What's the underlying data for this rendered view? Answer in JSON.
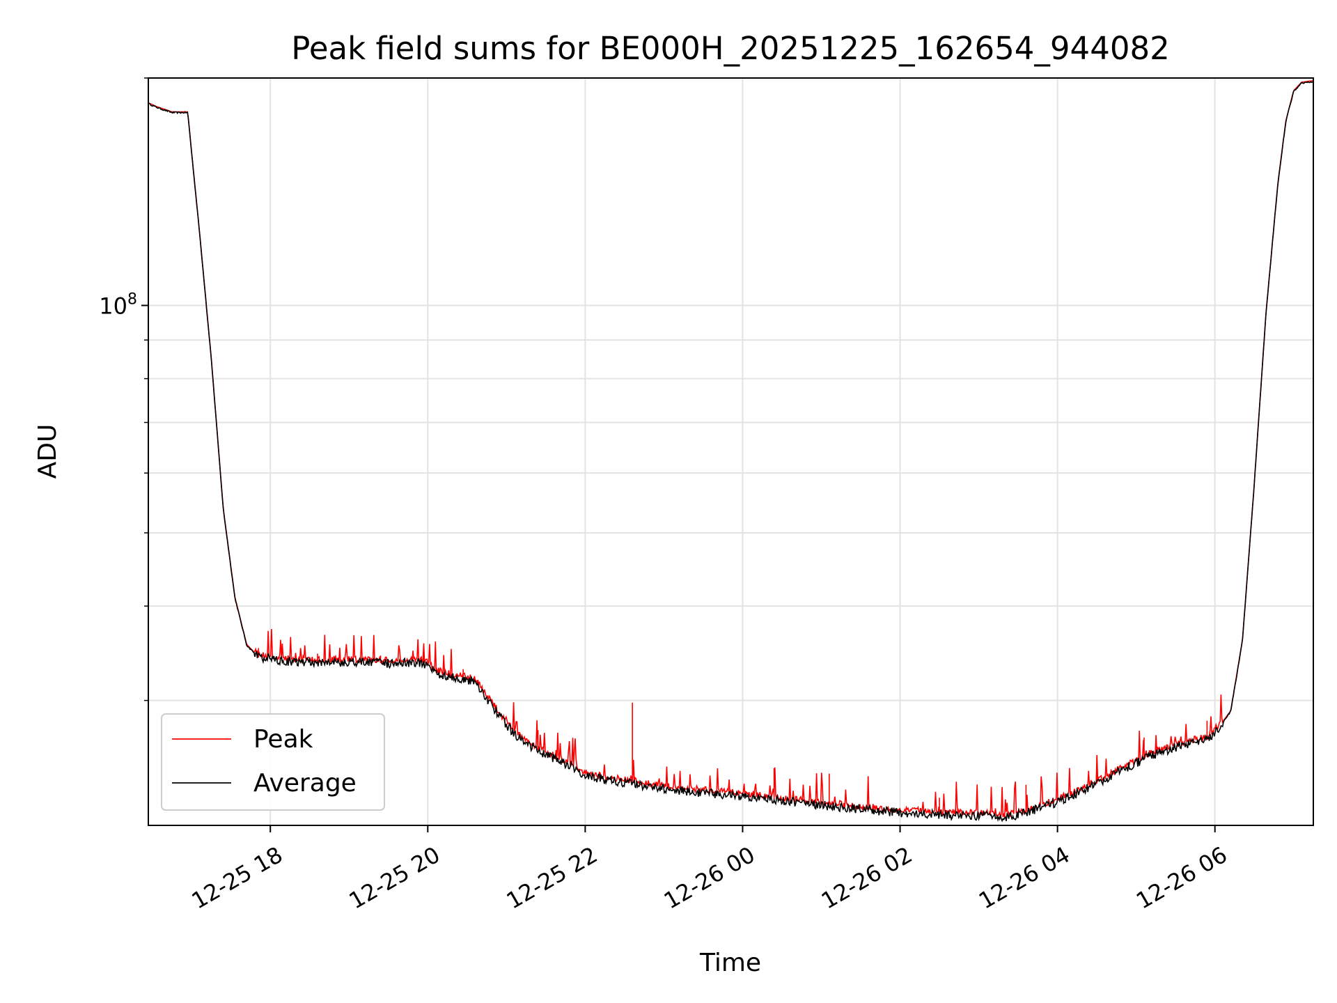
{
  "chart_data": {
    "type": "line",
    "title": "Peak field sums for BE000H_20251225_162654_944082",
    "xlabel": "Time",
    "ylabel": "ADU",
    "x_unit": "hours since 12-25 00:00",
    "xlim": [
      16.45,
      31.25
    ],
    "ylim": [
      20500000,
      200000000
    ],
    "yscale": "log",
    "grid": true,
    "x_ticks": [
      {
        "value": 18,
        "label": "12-25 18"
      },
      {
        "value": 20,
        "label": "12-25 20"
      },
      {
        "value": 22,
        "label": "12-25 22"
      },
      {
        "value": 24,
        "label": "12-26 00"
      },
      {
        "value": 26,
        "label": "12-26 02"
      },
      {
        "value": 28,
        "label": "12-26 04"
      },
      {
        "value": 30,
        "label": "12-26 06"
      }
    ],
    "y_major_ticks": [
      {
        "value": 100000000,
        "base": "10",
        "exponent": "8"
      }
    ],
    "y_minor_ticks": [
      30000000,
      40000000,
      50000000,
      60000000,
      70000000,
      80000000,
      90000000,
      200000000
    ],
    "legend": {
      "location": "lower-left",
      "entries": [
        {
          "label": "Peak",
          "color": "#ff0000"
        },
        {
          "label": "Average",
          "color": "#000000"
        }
      ]
    },
    "series": [
      {
        "name": "Average",
        "color": "#000000",
        "x": [
          16.45,
          16.55,
          16.75,
          16.95,
          17.1,
          17.25,
          17.4,
          17.55,
          17.7,
          17.85,
          18.2,
          18.6,
          19.0,
          19.5,
          19.9,
          20.0,
          20.1,
          20.3,
          20.6,
          20.8,
          21.0,
          21.2,
          21.5,
          21.8,
          22.0,
          22.3,
          22.6,
          22.9,
          23.2,
          23.6,
          24.0,
          24.4,
          24.8,
          25.2,
          25.6,
          26.0,
          26.4,
          26.8,
          27.1,
          27.35,
          27.6,
          28.0,
          28.4,
          28.8,
          29.2,
          29.6,
          29.9,
          30.05,
          30.2,
          30.35,
          30.5,
          30.65,
          30.8,
          30.9,
          31.0,
          31.1,
          31.25
        ],
        "y": [
          185000000,
          183000000,
          180000000,
          180000000,
          125000000,
          85000000,
          54000000,
          41000000,
          35500000,
          34200000,
          33800000,
          33700000,
          33700000,
          33600000,
          33700000,
          33400000,
          32600000,
          32200000,
          31800000,
          29700000,
          27800000,
          26500000,
          25400000,
          24600000,
          23900000,
          23500000,
          23300000,
          23000000,
          22800000,
          22600000,
          22400000,
          22200000,
          21900000,
          21700000,
          21500000,
          21300000,
          21200000,
          21100000,
          21100000,
          21000000,
          21300000,
          22000000,
          23000000,
          24200000,
          25400000,
          26200000,
          26600000,
          27600000,
          29000000,
          36000000,
          58000000,
          98000000,
          145000000,
          175000000,
          192000000,
          197000000,
          198000000
        ]
      },
      {
        "name": "Peak",
        "color": "#ff0000",
        "spikes": [
          {
            "x": 17.85,
            "y": 35200000
          },
          {
            "x": 18.6,
            "y": 34600000
          },
          {
            "x": 19.4,
            "y": 34400000
          },
          {
            "x": 19.95,
            "y": 34700000
          },
          {
            "x": 20.45,
            "y": 33000000
          },
          {
            "x": 21.4,
            "y": 27400000
          },
          {
            "x": 22.6,
            "y": 29800000
          },
          {
            "x": 24.4,
            "y": 24400000
          },
          {
            "x": 25.1,
            "y": 24000000
          },
          {
            "x": 26.5,
            "y": 22300000
          },
          {
            "x": 27.6,
            "y": 23200000
          },
          {
            "x": 28.5,
            "y": 25300000
          },
          {
            "x": 29.1,
            "y": 26800000
          },
          {
            "x": 29.9,
            "y": 28200000
          }
        ]
      }
    ]
  }
}
